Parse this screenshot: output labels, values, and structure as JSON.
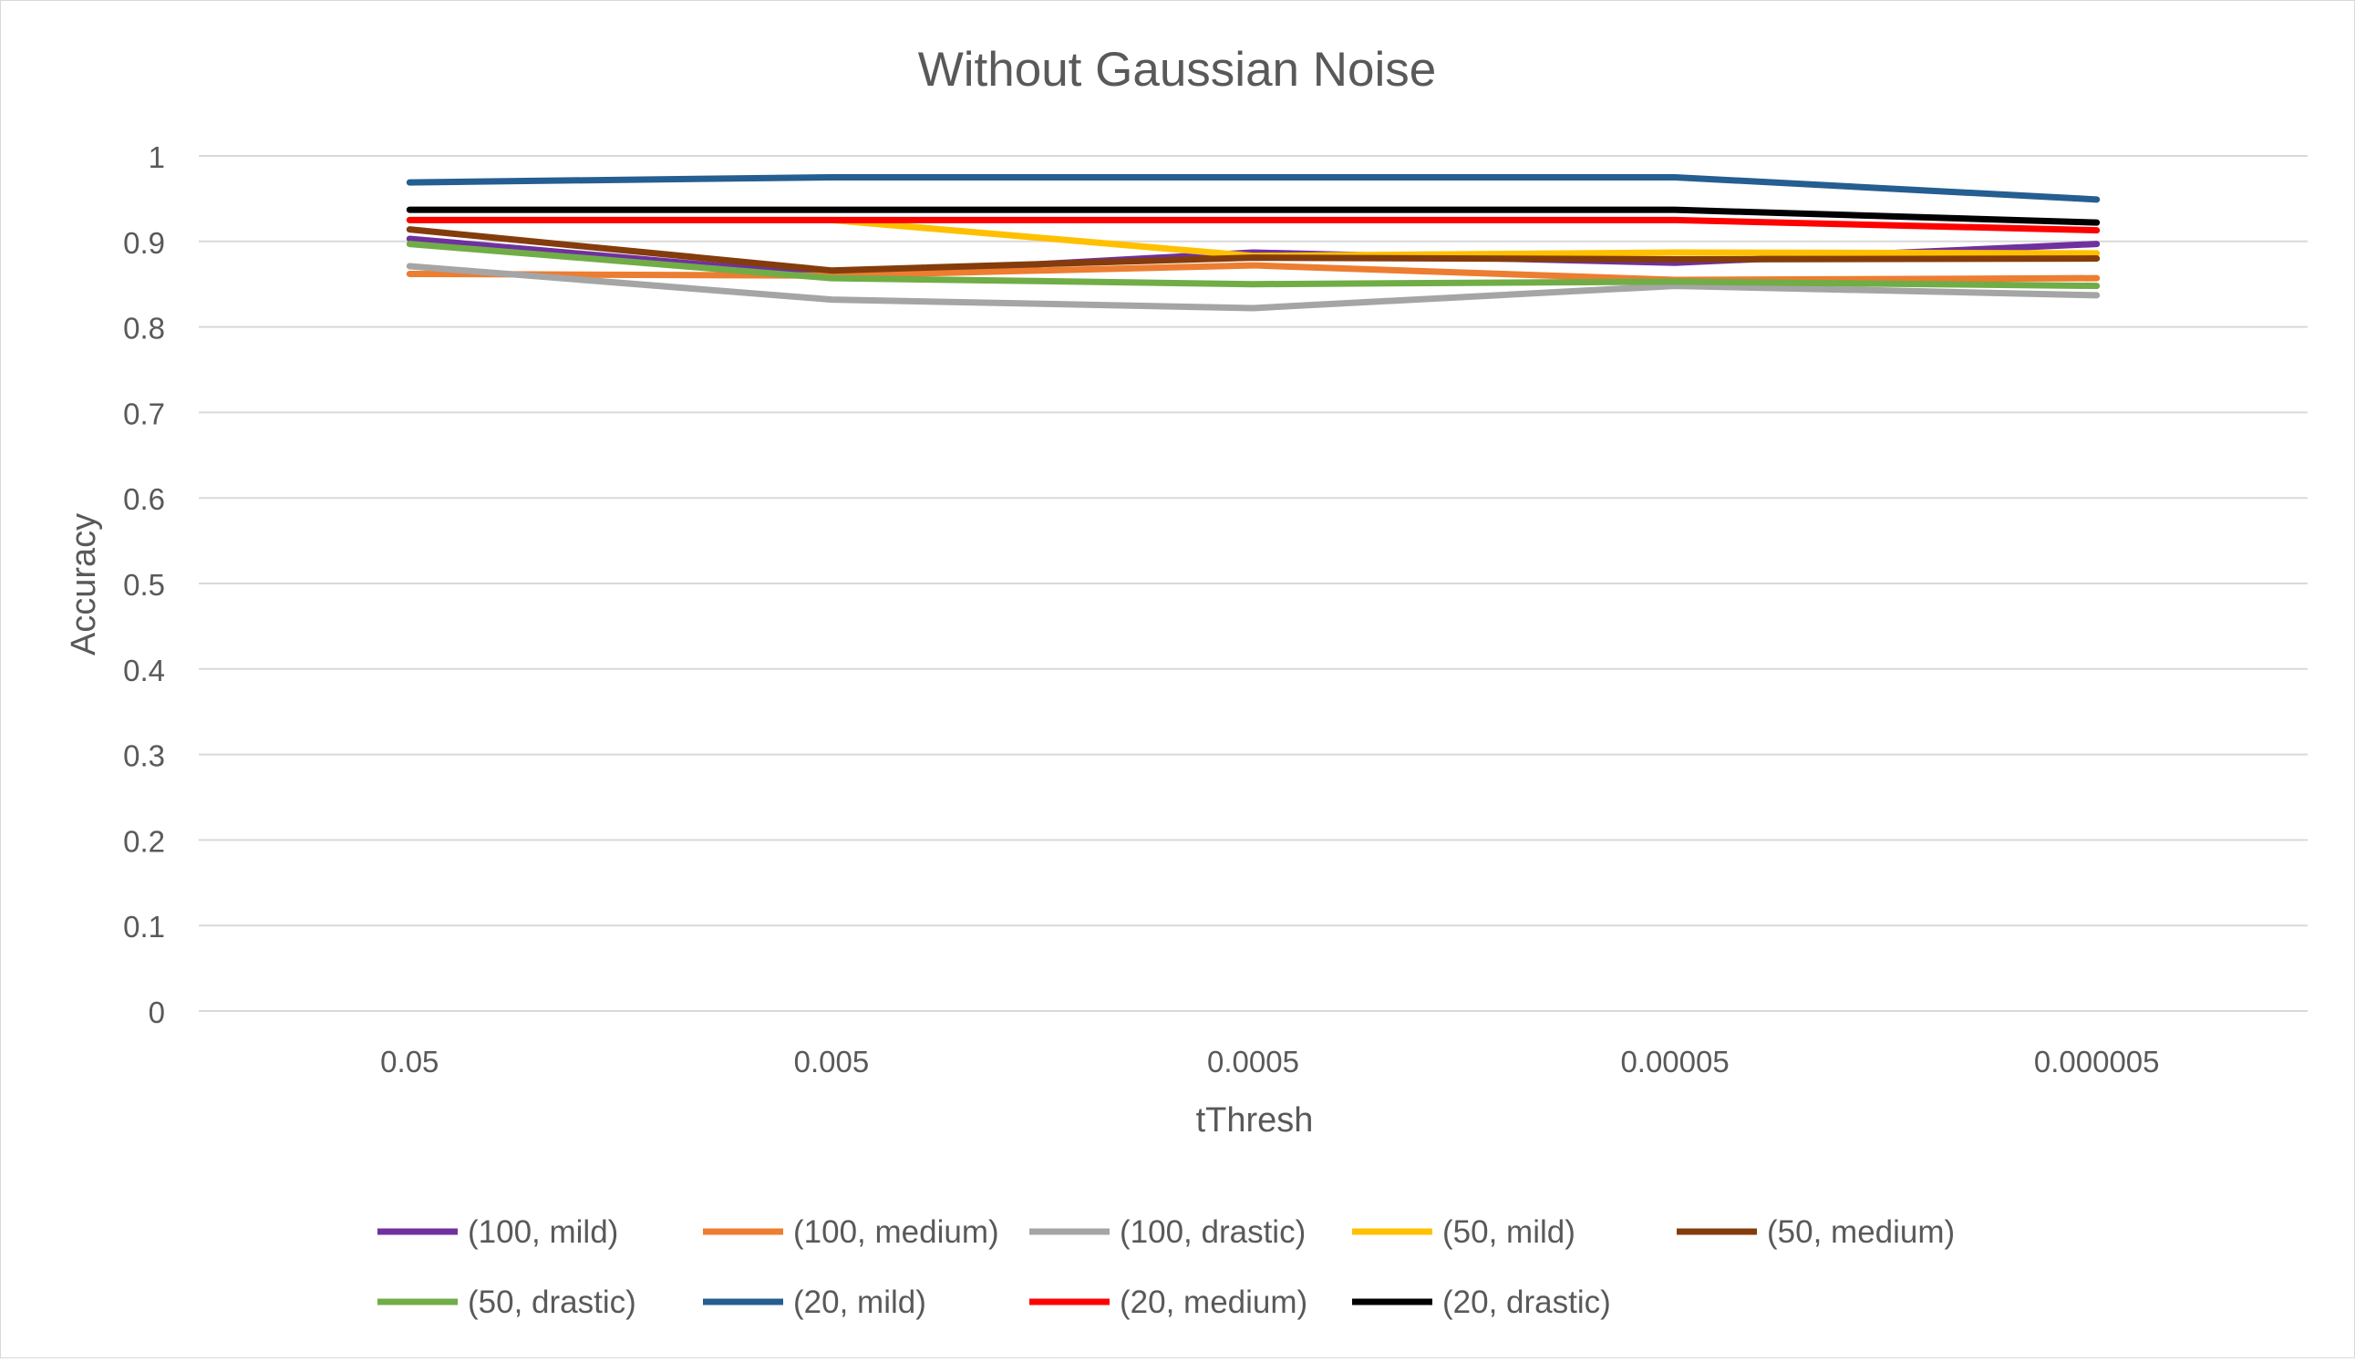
{
  "chart_data": {
    "type": "line",
    "title": "Without Gaussian Noise",
    "xlabel": "tThresh",
    "ylabel": "Accuracy",
    "categories": [
      "0.05",
      "0.005",
      "0.0005",
      "0.00005",
      "0.000005"
    ],
    "ylim": [
      0,
      1
    ],
    "yticks": [
      "0",
      "0.1",
      "0.2",
      "0.3",
      "0.4",
      "0.5",
      "0.6",
      "0.7",
      "0.8",
      "0.9",
      "1"
    ],
    "grid": true,
    "legend_position": "bottom",
    "series": [
      {
        "name": "(100, mild)",
        "color": "#7030a0",
        "values": [
          0.903,
          0.86,
          0.887,
          0.875,
          0.897
        ]
      },
      {
        "name": "(100, medium)",
        "color": "#ed7d31",
        "values": [
          0.862,
          0.86,
          0.872,
          0.855,
          0.857
        ]
      },
      {
        "name": "(100, drastic)",
        "color": "#a5a5a5",
        "values": [
          0.871,
          0.832,
          0.822,
          0.848,
          0.837
        ]
      },
      {
        "name": "(50, mild)",
        "color": "#ffc000",
        "values": [
          0.925,
          0.925,
          0.883,
          0.887,
          0.886
        ]
      },
      {
        "name": "(50, medium)",
        "color": "#843c0c",
        "values": [
          0.914,
          0.866,
          0.881,
          0.879,
          0.88
        ]
      },
      {
        "name": "(50, drastic)",
        "color": "#70ad47",
        "values": [
          0.897,
          0.857,
          0.85,
          0.853,
          0.848
        ]
      },
      {
        "name": "(20, mild)",
        "color": "#255e91",
        "values": [
          0.969,
          0.975,
          0.975,
          0.975,
          0.949
        ]
      },
      {
        "name": "(20, medium)",
        "color": "#ff0000",
        "values": [
          0.925,
          0.925,
          0.925,
          0.925,
          0.913
        ]
      },
      {
        "name": "(20, drastic)",
        "color": "#000000",
        "values": [
          0.937,
          0.937,
          0.937,
          0.937,
          0.922
        ]
      }
    ]
  }
}
